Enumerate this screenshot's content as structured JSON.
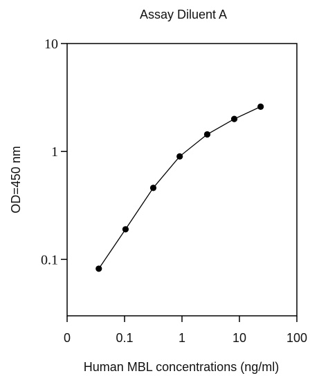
{
  "chart_data": {
    "type": "line",
    "title": "Assay Diluent A",
    "xlabel": "Human MBL concentrations (ng/ml)",
    "ylabel": "OD=450 nm",
    "x_scale": "log",
    "y_scale": "log",
    "xlim": [
      0.01,
      100
    ],
    "ylim": [
      0.03,
      10
    ],
    "x_ticks": [
      {
        "value": 0.01,
        "label": "0"
      },
      {
        "value": 0.1,
        "label": "0.1"
      },
      {
        "value": 1,
        "label": "1"
      },
      {
        "value": 10,
        "label": "10"
      },
      {
        "value": 100,
        "label": "100"
      }
    ],
    "y_ticks": [
      {
        "value": 0.1,
        "label": "0.1"
      },
      {
        "value": 1,
        "label": "1"
      },
      {
        "value": 10,
        "label": "10"
      }
    ],
    "grid": false,
    "legend": "none",
    "series": [
      {
        "x": [
          0.0356,
          0.104,
          0.316,
          0.912,
          2.75,
          8.13,
          23.4
        ],
        "y": [
          0.082,
          0.19,
          0.46,
          0.9,
          1.44,
          2.0,
          2.6
        ],
        "color": "#000000",
        "marker": "filled-circle"
      }
    ]
  }
}
